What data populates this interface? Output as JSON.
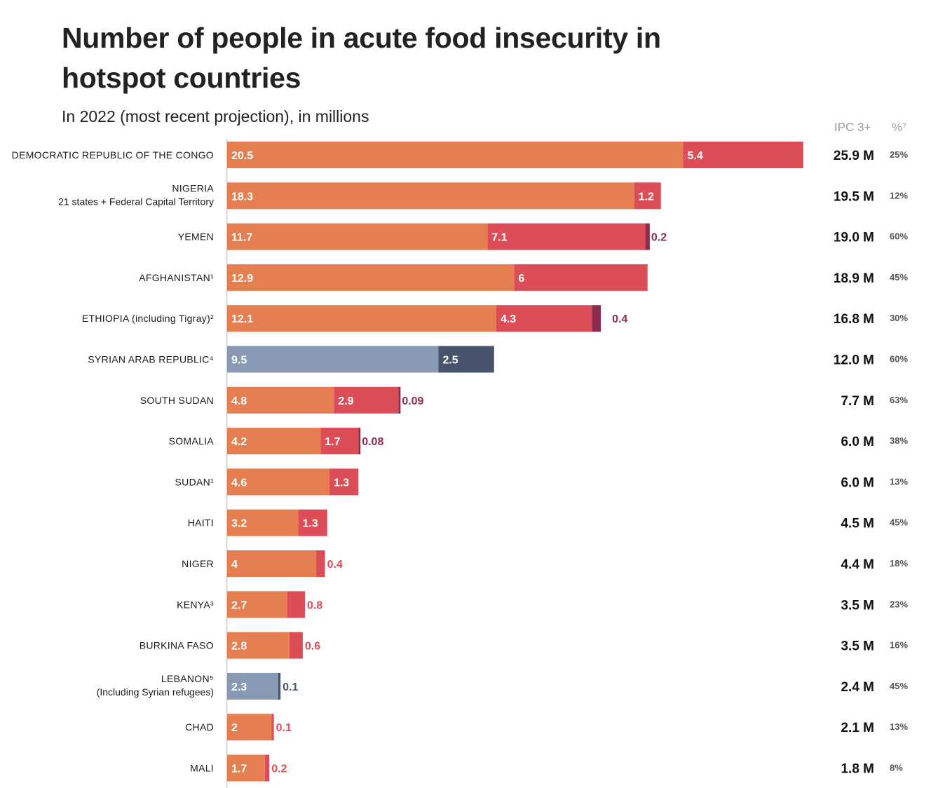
{
  "chart_data": {
    "type": "bar",
    "orientation": "horizontal",
    "stacked": true,
    "title": "Number of people in acute food insecurity in hotspot countries",
    "subtitle": "In 2022 (most recent projection), in millions",
    "column_headers": {
      "total": "IPC 3+",
      "percent": "%⁷"
    },
    "categories": [
      {
        "name": "DEMOCRATIC REPUBLIC OF THE CONGO",
        "sub": "",
        "scheme": "ipc",
        "segments": [
          20.5,
          5.4
        ],
        "total": "25.9 M",
        "pct": "25%"
      },
      {
        "name": "NIGERIA",
        "sub": "21 states + Federal Capital Territory",
        "scheme": "ipc",
        "segments": [
          18.3,
          1.2
        ],
        "total": "19.5 M",
        "pct": "12%"
      },
      {
        "name": "YEMEN",
        "sub": "",
        "scheme": "ipc",
        "segments": [
          11.7,
          7.1,
          0.2
        ],
        "total": "19.0 M",
        "pct": "60%"
      },
      {
        "name": "AFGHANISTAN¹",
        "sub": "",
        "scheme": "ipc",
        "segments": [
          12.9,
          6.0
        ],
        "total": "18.9 M",
        "pct": "45%"
      },
      {
        "name": "ETHIOPIA (including Tigray)²",
        "sub": "",
        "scheme": "ipc",
        "segments": [
          12.1,
          4.3,
          0.4
        ],
        "total": "16.8 M",
        "pct": "30%"
      },
      {
        "name": "SYRIAN ARAB REPUBLIC⁴",
        "sub": "",
        "scheme": "other",
        "segments": [
          9.5,
          2.5
        ],
        "total": "12.0 M",
        "pct": "60%"
      },
      {
        "name": "SOUTH SUDAN",
        "sub": "",
        "scheme": "ipc",
        "segments": [
          4.8,
          2.9,
          0.09
        ],
        "total": "7.7 M",
        "pct": "63%"
      },
      {
        "name": "SOMALIA",
        "sub": "",
        "scheme": "ipc",
        "segments": [
          4.2,
          1.7,
          0.08
        ],
        "total": "6.0 M",
        "pct": "38%"
      },
      {
        "name": "SUDAN¹",
        "sub": "",
        "scheme": "ipc",
        "segments": [
          4.6,
          1.3
        ],
        "total": "6.0 M",
        "pct": "13%"
      },
      {
        "name": "HAITI",
        "sub": "",
        "scheme": "ipc",
        "segments": [
          3.2,
          1.3
        ],
        "total": "4.5 M",
        "pct": "45%"
      },
      {
        "name": "NIGER",
        "sub": "",
        "scheme": "ipc",
        "segments": [
          4.0,
          0.4
        ],
        "total": "4.4 M",
        "pct": "18%"
      },
      {
        "name": "KENYA³",
        "sub": "",
        "scheme": "ipc",
        "segments": [
          2.7,
          0.8
        ],
        "total": "3.5 M",
        "pct": "23%"
      },
      {
        "name": "BURKINA FASO",
        "sub": "",
        "scheme": "ipc",
        "segments": [
          2.8,
          0.6
        ],
        "total": "3.5 M",
        "pct": "16%"
      },
      {
        "name": "LEBANON⁵",
        "sub": "(Including Syrian refugees)",
        "scheme": "other",
        "segments": [
          2.3,
          0.1
        ],
        "total": "2.4 M",
        "pct": "45%"
      },
      {
        "name": "CHAD",
        "sub": "",
        "scheme": "ipc",
        "segments": [
          2.0,
          0.1
        ],
        "total": "2.1 M",
        "pct": "13%"
      },
      {
        "name": "MALI",
        "sub": "",
        "scheme": "ipc",
        "segments": [
          1.7,
          0.2
        ],
        "total": "1.8 M",
        "pct": "8%"
      }
    ],
    "xlim": [
      0,
      26
    ],
    "grid": false,
    "colors": {
      "ipc": [
        "#e57f52",
        "#dd4d58",
        "#8e2b50"
      ],
      "other": [
        "#8a99b3",
        "#47546b"
      ],
      "label_on_bar": "#ffffff"
    }
  }
}
